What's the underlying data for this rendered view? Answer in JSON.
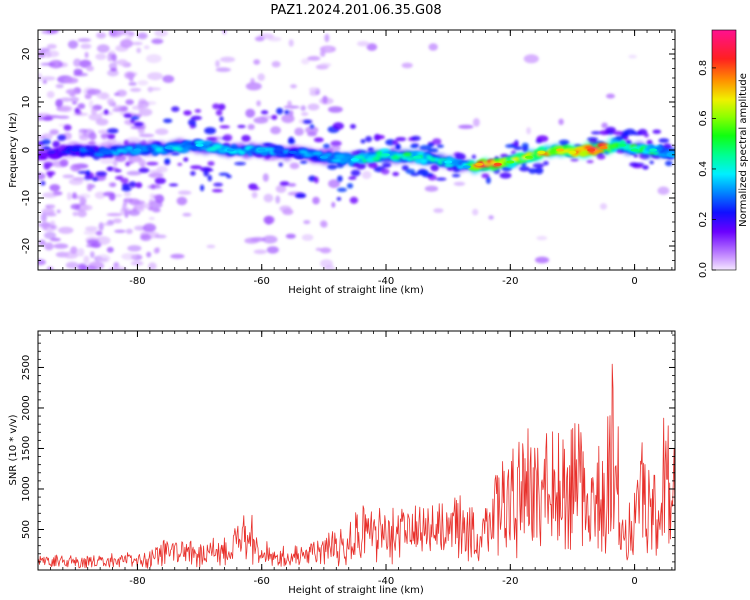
{
  "title": "PAZ1.2024.201.06.35.G08",
  "chart_data": [
    {
      "type": "heatmap",
      "xlabel": "Height of straight line (km)",
      "ylabel": "Frequency (Hz)",
      "xlim": [
        -96,
        6.5
      ],
      "ylim": [
        -25,
        25
      ],
      "xticks": [
        -80,
        -60,
        -40,
        -20,
        0
      ],
      "yticks": [
        -20,
        -10,
        0,
        10,
        20
      ],
      "colorbar": {
        "label": "Normalized spectral amplitude",
        "range": [
          0,
          0.95
        ],
        "ticks": [
          0.0,
          0.2,
          0.4,
          0.6,
          0.8
        ],
        "tick_labels": [
          "0.0",
          "0.2",
          "0.4",
          "0.6",
          "0.8"
        ],
        "colormap": "gist_ncar_r (purple-blue-cyan-green-yellow-orange-red-magenta)"
      },
      "ridge": {
        "description": "main spectral ridge, frequency (Hz) vs height",
        "x": [
          -95,
          -90,
          -85,
          -80,
          -75,
          -70,
          -65,
          -60,
          -55,
          -50,
          -45,
          -40,
          -35,
          -30,
          -27,
          -25,
          -22,
          -20,
          -17,
          -15,
          -12,
          -10,
          -7,
          -5,
          -2,
          0,
          3,
          6
        ],
        "y": [
          -1,
          0,
          -0.5,
          0,
          0.5,
          1,
          0,
          0,
          -0.5,
          -1.5,
          -2,
          -1,
          -1.5,
          -2.5,
          -3.5,
          -3,
          -3,
          -2.5,
          -1.5,
          -0.5,
          0,
          -0.5,
          0,
          0.5,
          1,
          0,
          0,
          -1
        ],
        "amplitude": [
          0.15,
          0.25,
          0.3,
          0.35,
          0.35,
          0.4,
          0.35,
          0.35,
          0.3,
          0.35,
          0.4,
          0.45,
          0.45,
          0.4,
          0.35,
          0.75,
          0.85,
          0.6,
          0.6,
          0.7,
          0.75,
          0.7,
          0.85,
          0.8,
          0.5,
          0.5,
          0.45,
          0.35
        ]
      }
    },
    {
      "type": "line",
      "xlabel": "Height of straight line (km)",
      "ylabel": "SNR (10 * v/v)",
      "xlim": [
        -96,
        6.5
      ],
      "ylim": [
        0,
        2950
      ],
      "xticks": [
        -80,
        -60,
        -40,
        -20,
        0
      ],
      "yticks": [
        500,
        1000,
        1500,
        2000,
        2500
      ],
      "color": "#e8302b",
      "series": [
        {
          "x": [
            -96,
            -90,
            -85,
            -80,
            -77,
            -75,
            -72,
            -70,
            -68,
            -65,
            -63,
            -62,
            -60,
            -58,
            -55,
            -52,
            -50,
            -48,
            -45,
            -43,
            -42,
            -40,
            -38,
            -36,
            -34,
            -32,
            -30,
            -28,
            -26,
            -25,
            -24,
            -22,
            -20,
            -19,
            -18,
            -16,
            -14,
            -12,
            -10,
            -9,
            -8,
            -6,
            -5,
            -4,
            -3.5,
            -3,
            -2.5,
            -2,
            -1.5,
            -1,
            -0.5,
            0,
            1,
            2,
            3,
            4,
            5,
            6,
            6.5
          ],
          "y": [
            180,
            160,
            170,
            200,
            280,
            380,
            350,
            330,
            420,
            500,
            620,
            700,
            340,
            300,
            280,
            330,
            380,
            500,
            650,
            820,
            780,
            650,
            700,
            720,
            780,
            820,
            750,
            880,
            700,
            320,
            1000,
            1200,
            1450,
            1350,
            1600,
            1550,
            1650,
            1500,
            1700,
            1800,
            1550,
            1500,
            1600,
            1900,
            2600,
            2100,
            1300,
            550,
            650,
            800,
            1100,
            1550,
            1700,
            1500,
            1550,
            1500,
            1850,
            1600,
            1550
          ]
        }
      ]
    }
  ]
}
